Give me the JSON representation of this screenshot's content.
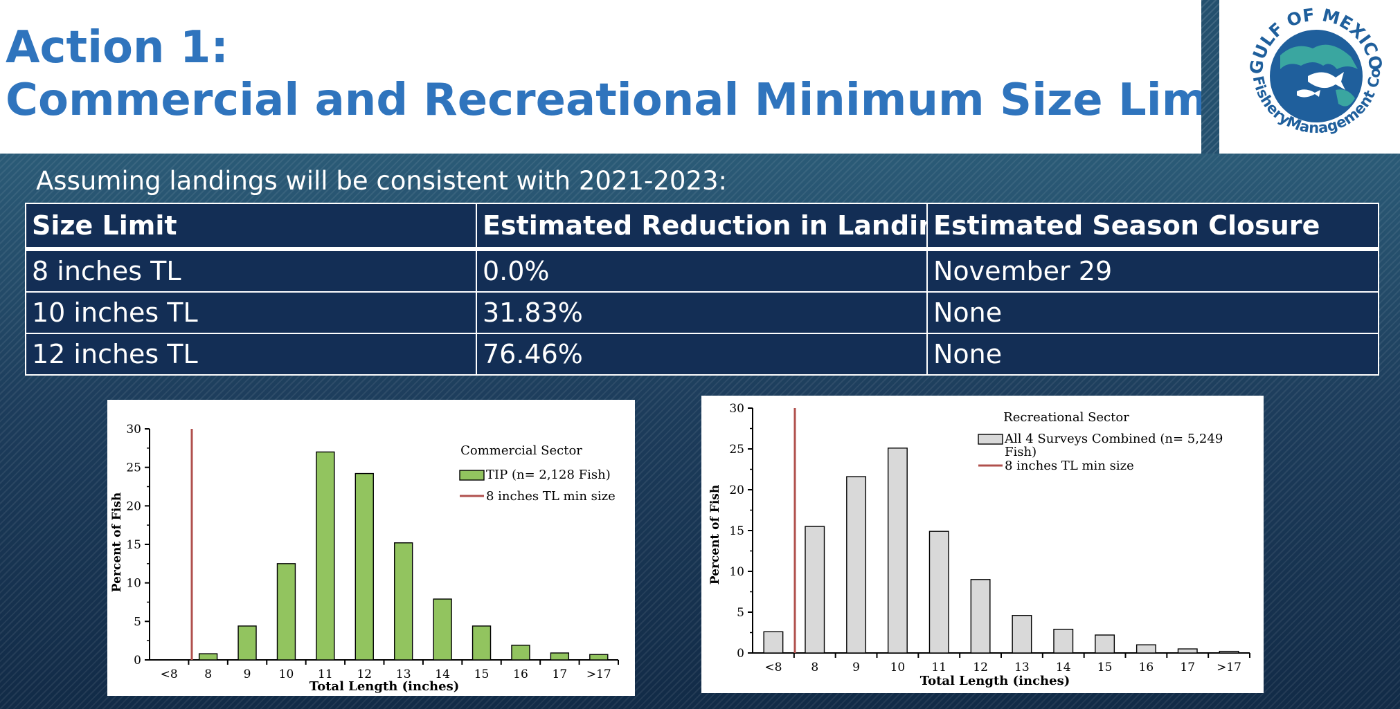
{
  "header": {
    "title_line1": "Action 1:",
    "title_line2": "Commercial and Recreational Minimum Size Limit"
  },
  "logo": {
    "name_arc": "GULF OF MEXICO",
    "left_arc": "Fishery",
    "bottom_arc": "Management Council"
  },
  "subtitle": "Assuming landings will be consistent with 2021-2023:",
  "table": {
    "headers": [
      "Size Limit",
      "Estimated Reduction in Landings",
      "Estimated Season Closure"
    ],
    "rows": [
      [
        "8 inches TL",
        "0.0%",
        "November 29"
      ],
      [
        "10 inches TL",
        "31.83%",
        "None"
      ],
      [
        "12 inches TL",
        "76.46%",
        "None"
      ]
    ]
  },
  "colors": {
    "title": "#2f74bd",
    "table_bg": "#132e55",
    "commercial_bar": "#92c45f",
    "recreational_bar": "#d9d9d9",
    "min_size_line": "#b0504d"
  },
  "chart_data": [
    {
      "type": "bar",
      "title": "Commercial Sector",
      "xlabel": "Total Length (inches)",
      "ylabel": "Percent of Fish",
      "ylim": [
        0,
        30
      ],
      "yticks": [
        "0",
        "5",
        "10",
        "15",
        "20",
        "25",
        "30"
      ],
      "categories": [
        "<8",
        "8",
        "9",
        "10",
        "11",
        "12",
        "13",
        "14",
        "15",
        "16",
        "17",
        ">17"
      ],
      "series": [
        {
          "name": "TIP (n= 2,128 Fish)",
          "values": [
            0,
            0.8,
            4.4,
            12.5,
            27.0,
            24.2,
            15.2,
            7.9,
            4.4,
            1.9,
            0.9,
            0.7
          ]
        }
      ],
      "min_size_line": {
        "label": "8 inches TL min size",
        "x": 8
      },
      "legend_position": "top-right"
    },
    {
      "type": "bar",
      "title": "Recreational Sector",
      "xlabel": "Total Length (inches)",
      "ylabel": "Percent of Fish",
      "ylim": [
        0,
        30
      ],
      "yticks": [
        "0",
        "5",
        "10",
        "15",
        "20",
        "25",
        "30"
      ],
      "categories": [
        "<8",
        "8",
        "9",
        "10",
        "11",
        "12",
        "13",
        "14",
        "15",
        "16",
        "17",
        ">17"
      ],
      "series": [
        {
          "name": "All 4 Surveys Combined (n= 5,249 Fish)",
          "name_line1": "All 4 Surveys Combined (n= 5,249",
          "name_line2": "Fish)",
          "values": [
            2.6,
            15.5,
            21.6,
            25.1,
            14.9,
            9.0,
            4.6,
            2.9,
            2.2,
            1.0,
            0.5,
            0.2
          ]
        }
      ],
      "min_size_line": {
        "label": "8 inches TL min size",
        "x": 8
      },
      "legend_position": "top-right"
    }
  ]
}
